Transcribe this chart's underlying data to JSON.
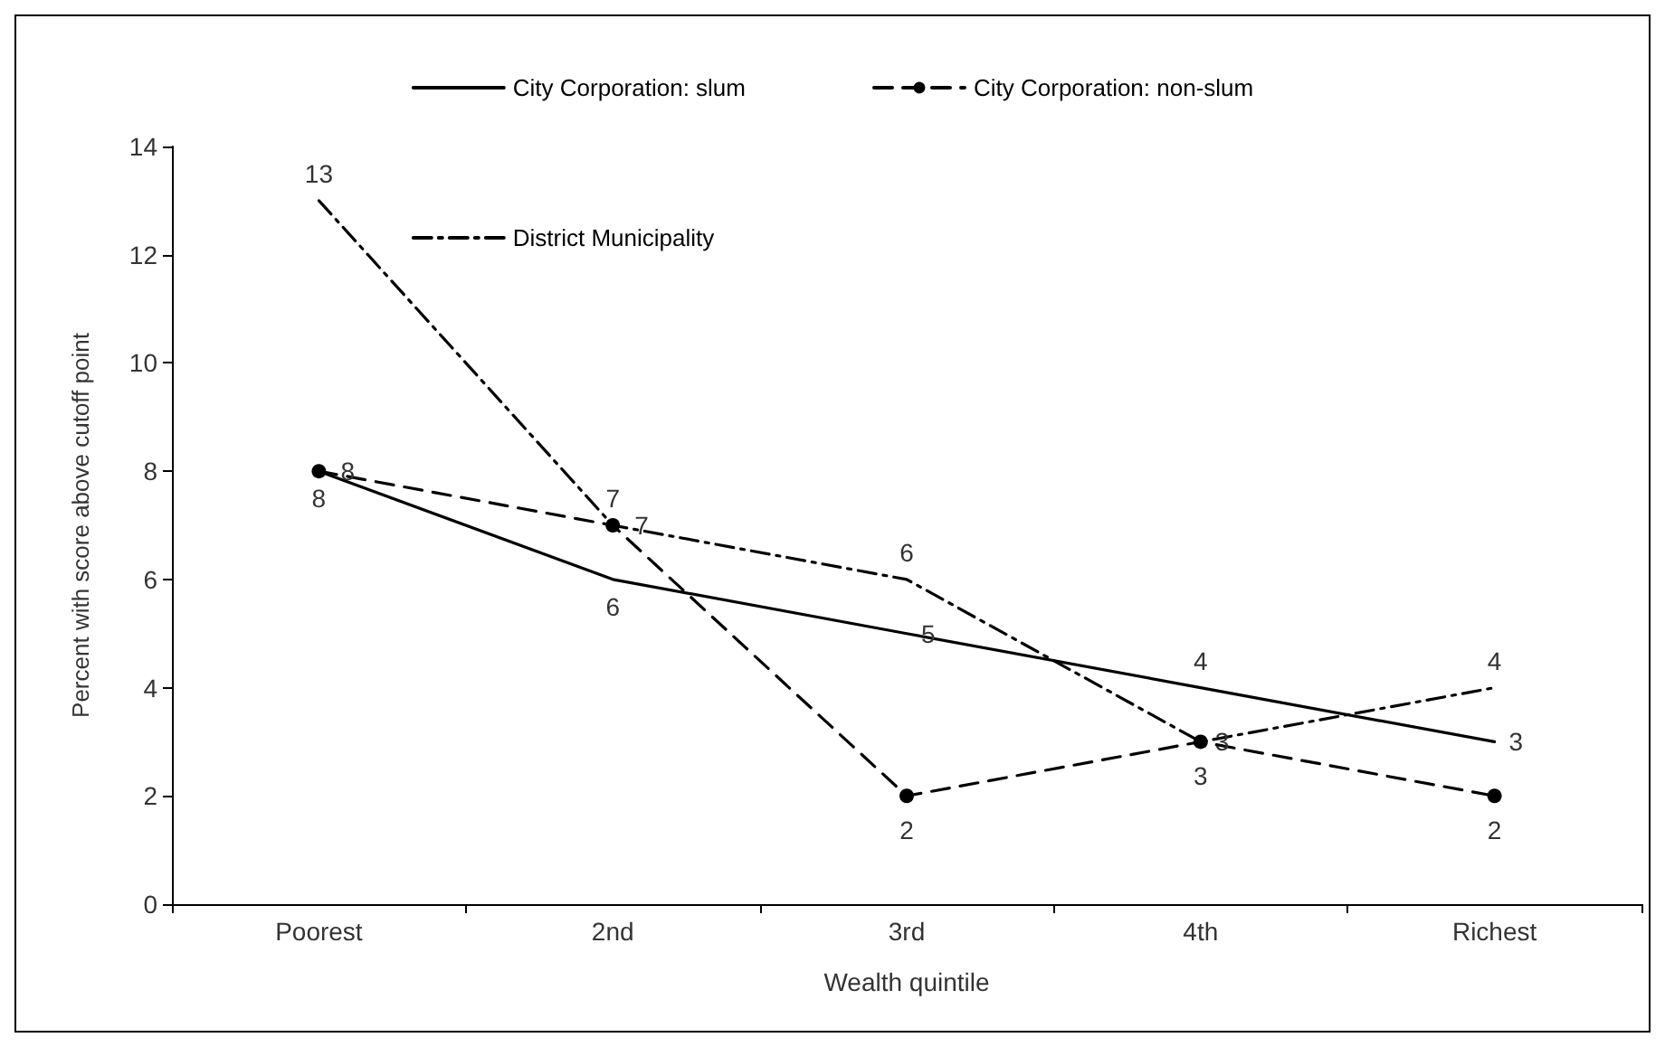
{
  "chart_data": {
    "type": "line",
    "xlabel": "Wealth quintile",
    "ylabel": "Percent with score above cutoff point",
    "categories": [
      "Poorest",
      "2nd",
      "3rd",
      "4th",
      "Richest"
    ],
    "series": [
      {
        "name": "City Corporation: slum",
        "color": "#000000",
        "values": [
          8,
          6,
          5,
          4,
          3
        ],
        "line_style": "solid",
        "marker": "none"
      },
      {
        "name": "City Corporation: non-slum",
        "color": "#000000",
        "values": [
          8,
          7,
          2,
          3,
          2
        ],
        "line_style": "dashed",
        "marker": "circle"
      },
      {
        "name": "District Municipality",
        "color": "#000000",
        "values": [
          13,
          7,
          6,
          3,
          4
        ],
        "line_style": "dashdot",
        "marker": "none"
      }
    ],
    "ylim": [
      0,
      14
    ],
    "yticks": [
      0,
      2,
      4,
      6,
      8,
      10,
      12,
      14
    ],
    "grid": false,
    "legend": "top",
    "data_labels": true
  }
}
